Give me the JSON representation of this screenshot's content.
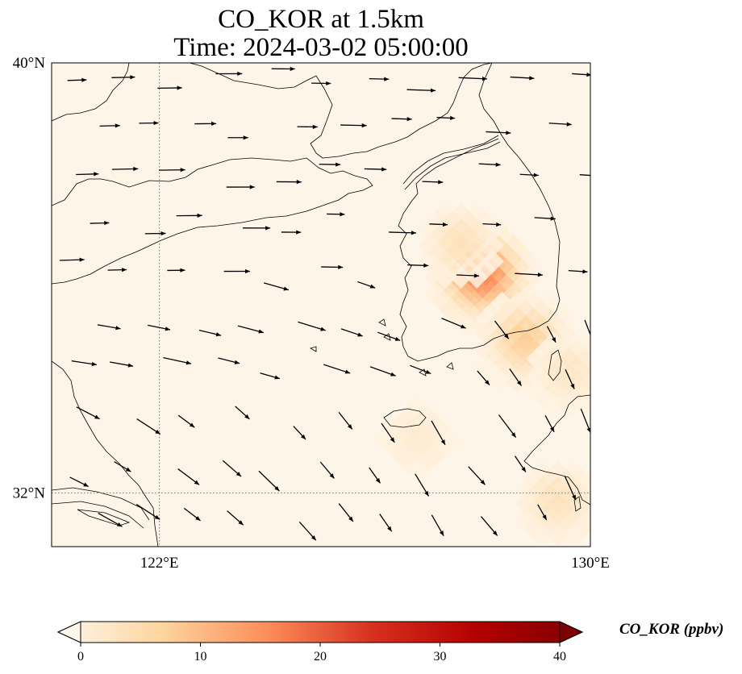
{
  "title_line1": "CO_KOR at 1.5km",
  "title_line2": "Time: 2024-03-02 05:00:00",
  "map": {
    "lon_range": [
      120,
      130
    ],
    "lat_range": [
      31,
      40
    ],
    "gridlines": {
      "lons": [
        122
      ],
      "lats": [
        32
      ],
      "style": "dotted"
    },
    "lat_ticks": [
      {
        "value": 40,
        "label": "40°N"
      },
      {
        "value": 32,
        "label": "32°N"
      }
    ],
    "lon_ticks": [
      {
        "value": 122,
        "label": "122°E"
      },
      {
        "value": 130,
        "label": "130°E"
      }
    ],
    "field": "CO_KOR",
    "background_color": "#fef5e9",
    "coastline_color": "#000000",
    "hotspots": [
      {
        "lon": 128.0,
        "lat": 36.0,
        "value": 18
      },
      {
        "lon": 128.8,
        "lat": 34.8,
        "value": 9
      },
      {
        "lon": 129.6,
        "lat": 34.2,
        "value": 4
      },
      {
        "lon": 127.6,
        "lat": 36.6,
        "value": 5
      },
      {
        "lon": 126.8,
        "lat": 33.0,
        "value": 3
      },
      {
        "lon": 129.4,
        "lat": 31.8,
        "value": 5
      }
    ],
    "wind_vectors": "uniform-grid arrows (approximate)"
  },
  "colorbar": {
    "label": "CO_KOR (ppbv)",
    "min": 0,
    "max": 40,
    "ticks": [
      {
        "value": 0,
        "label": "0"
      },
      {
        "value": 10,
        "label": "10"
      },
      {
        "value": 20,
        "label": "20"
      },
      {
        "value": 30,
        "label": "30"
      },
      {
        "value": 40,
        "label": "40"
      }
    ],
    "colormap": "OrRd",
    "stops": [
      "#fff7ec",
      "#fdd49e",
      "#fc8d59",
      "#d7301f",
      "#b30000",
      "#7f0000"
    ],
    "extend": "both"
  }
}
